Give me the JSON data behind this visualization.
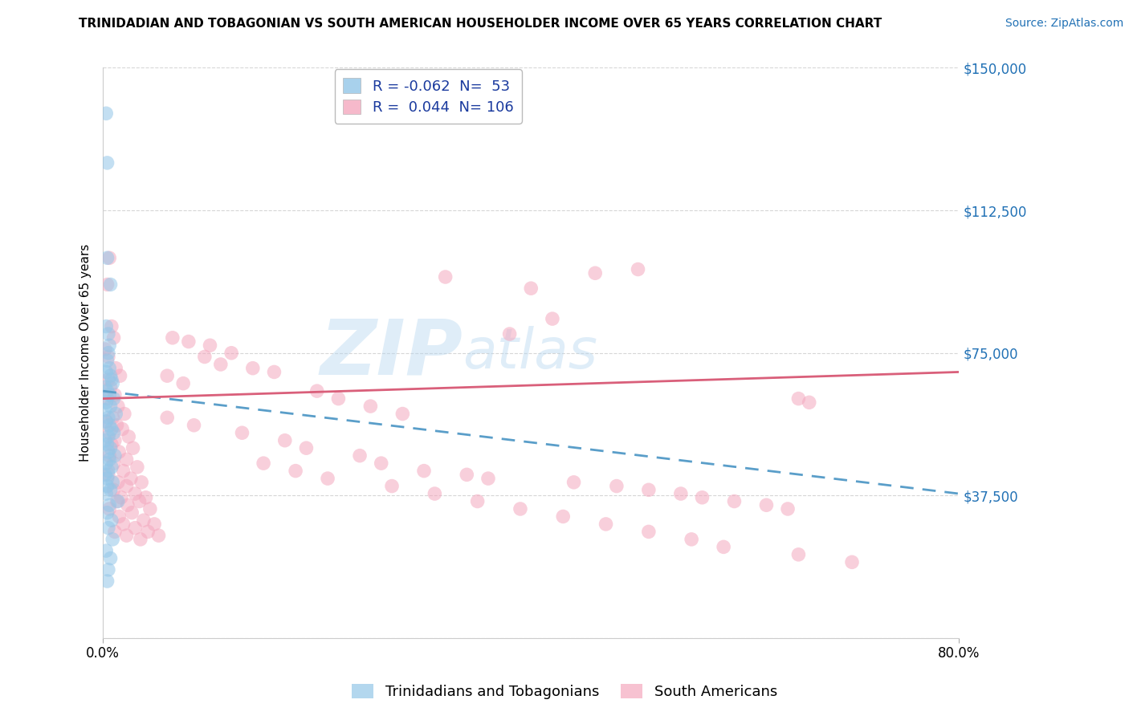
{
  "title": "TRINIDADIAN AND TOBAGONIAN VS SOUTH AMERICAN HOUSEHOLDER INCOME OVER 65 YEARS CORRELATION CHART",
  "source": "Source: ZipAtlas.com",
  "ylabel": "Householder Income Over 65 years",
  "x_min": 0.0,
  "x_max": 0.8,
  "y_min": 0,
  "y_max": 150000,
  "y_ticks": [
    0,
    37500,
    75000,
    112500,
    150000
  ],
  "y_tick_labels": [
    "",
    "$37,500",
    "$75,000",
    "$112,500",
    "$150,000"
  ],
  "x_ticks": [
    0.0,
    0.8
  ],
  "x_tick_labels": [
    "0.0%",
    "80.0%"
  ],
  "blue_R": -0.062,
  "blue_N": 53,
  "pink_R": 0.044,
  "pink_N": 106,
  "blue_color": "#93c6e8",
  "pink_color": "#f4a8be",
  "blue_line_color": "#5a9ec9",
  "pink_line_color": "#d95f7a",
  "legend_blue_label": "Trinidadians and Tobagonians",
  "legend_pink_label": "South Americans",
  "watermark_zip": "ZIP",
  "watermark_atlas": "atlas",
  "title_fontsize": 11,
  "axis_label_fontsize": 11,
  "tick_fontsize": 12,
  "legend_fontsize": 12,
  "source_fontsize": 10,
  "blue_line_x": [
    0.0,
    0.8
  ],
  "blue_line_y": [
    65000,
    38000
  ],
  "pink_line_x": [
    0.0,
    0.8
  ],
  "pink_line_y": [
    63000,
    70000
  ],
  "blue_scatter": [
    [
      0.003,
      138000
    ],
    [
      0.004,
      125000
    ],
    [
      0.004,
      100000
    ],
    [
      0.007,
      93000
    ],
    [
      0.003,
      82000
    ],
    [
      0.005,
      80000
    ],
    [
      0.006,
      77000
    ],
    [
      0.005,
      75000
    ],
    [
      0.004,
      73000
    ],
    [
      0.006,
      71000
    ],
    [
      0.003,
      70000
    ],
    [
      0.007,
      69000
    ],
    [
      0.008,
      68000
    ],
    [
      0.009,
      67000
    ],
    [
      0.002,
      66000
    ],
    [
      0.004,
      65000
    ],
    [
      0.006,
      64000
    ],
    [
      0.01,
      63000
    ],
    [
      0.003,
      62000
    ],
    [
      0.007,
      61000
    ],
    [
      0.002,
      60000
    ],
    [
      0.012,
      59000
    ],
    [
      0.005,
      58000
    ],
    [
      0.003,
      57000
    ],
    [
      0.006,
      56000
    ],
    [
      0.008,
      55000
    ],
    [
      0.01,
      54000
    ],
    [
      0.005,
      53000
    ],
    [
      0.002,
      52000
    ],
    [
      0.004,
      51000
    ],
    [
      0.007,
      50000
    ],
    [
      0.005,
      49000
    ],
    [
      0.011,
      48000
    ],
    [
      0.006,
      47000
    ],
    [
      0.003,
      46000
    ],
    [
      0.008,
      45000
    ],
    [
      0.005,
      44000
    ],
    [
      0.002,
      43000
    ],
    [
      0.004,
      42000
    ],
    [
      0.009,
      41000
    ],
    [
      0.004,
      40000
    ],
    [
      0.007,
      39000
    ],
    [
      0.003,
      38000
    ],
    [
      0.014,
      36000
    ],
    [
      0.006,
      35000
    ],
    [
      0.004,
      33000
    ],
    [
      0.008,
      31000
    ],
    [
      0.005,
      29000
    ],
    [
      0.009,
      26000
    ],
    [
      0.003,
      23000
    ],
    [
      0.007,
      21000
    ],
    [
      0.005,
      18000
    ],
    [
      0.004,
      15000
    ]
  ],
  "pink_scatter": [
    [
      0.004,
      93000
    ],
    [
      0.006,
      100000
    ],
    [
      0.008,
      82000
    ],
    [
      0.01,
      79000
    ],
    [
      0.002,
      76000
    ],
    [
      0.005,
      74000
    ],
    [
      0.012,
      71000
    ],
    [
      0.016,
      69000
    ],
    [
      0.005,
      68000
    ],
    [
      0.007,
      66000
    ],
    [
      0.011,
      64000
    ],
    [
      0.004,
      63000
    ],
    [
      0.014,
      61000
    ],
    [
      0.02,
      59000
    ],
    [
      0.009,
      58000
    ],
    [
      0.003,
      57000
    ],
    [
      0.013,
      56000
    ],
    [
      0.018,
      55000
    ],
    [
      0.006,
      54000
    ],
    [
      0.024,
      53000
    ],
    [
      0.011,
      52000
    ],
    [
      0.008,
      51000
    ],
    [
      0.028,
      50000
    ],
    [
      0.015,
      49000
    ],
    [
      0.006,
      48000
    ],
    [
      0.022,
      47000
    ],
    [
      0.01,
      46000
    ],
    [
      0.032,
      45000
    ],
    [
      0.019,
      44000
    ],
    [
      0.005,
      43000
    ],
    [
      0.026,
      42000
    ],
    [
      0.014,
      41000
    ],
    [
      0.036,
      41000
    ],
    [
      0.022,
      40000
    ],
    [
      0.01,
      39000
    ],
    [
      0.03,
      38000
    ],
    [
      0.017,
      37000
    ],
    [
      0.04,
      37000
    ],
    [
      0.013,
      36000
    ],
    [
      0.034,
      36000
    ],
    [
      0.023,
      35000
    ],
    [
      0.006,
      34000
    ],
    [
      0.044,
      34000
    ],
    [
      0.027,
      33000
    ],
    [
      0.015,
      32000
    ],
    [
      0.038,
      31000
    ],
    [
      0.019,
      30000
    ],
    [
      0.048,
      30000
    ],
    [
      0.03,
      29000
    ],
    [
      0.011,
      28000
    ],
    [
      0.042,
      28000
    ],
    [
      0.022,
      27000
    ],
    [
      0.052,
      27000
    ],
    [
      0.035,
      26000
    ],
    [
      0.32,
      95000
    ],
    [
      0.4,
      92000
    ],
    [
      0.46,
      96000
    ],
    [
      0.5,
      97000
    ],
    [
      0.42,
      84000
    ],
    [
      0.38,
      80000
    ],
    [
      0.065,
      79000
    ],
    [
      0.08,
      78000
    ],
    [
      0.1,
      77000
    ],
    [
      0.12,
      75000
    ],
    [
      0.095,
      74000
    ],
    [
      0.11,
      72000
    ],
    [
      0.14,
      71000
    ],
    [
      0.16,
      70000
    ],
    [
      0.06,
      69000
    ],
    [
      0.075,
      67000
    ],
    [
      0.2,
      65000
    ],
    [
      0.22,
      63000
    ],
    [
      0.25,
      61000
    ],
    [
      0.28,
      59000
    ],
    [
      0.06,
      58000
    ],
    [
      0.085,
      56000
    ],
    [
      0.13,
      54000
    ],
    [
      0.17,
      52000
    ],
    [
      0.19,
      50000
    ],
    [
      0.24,
      48000
    ],
    [
      0.26,
      46000
    ],
    [
      0.3,
      44000
    ],
    [
      0.34,
      43000
    ],
    [
      0.36,
      42000
    ],
    [
      0.44,
      41000
    ],
    [
      0.48,
      40000
    ],
    [
      0.51,
      39000
    ],
    [
      0.54,
      38000
    ],
    [
      0.56,
      37000
    ],
    [
      0.59,
      36000
    ],
    [
      0.62,
      35000
    ],
    [
      0.64,
      34000
    ],
    [
      0.15,
      46000
    ],
    [
      0.18,
      44000
    ],
    [
      0.21,
      42000
    ],
    [
      0.27,
      40000
    ],
    [
      0.31,
      38000
    ],
    [
      0.35,
      36000
    ],
    [
      0.39,
      34000
    ],
    [
      0.43,
      32000
    ],
    [
      0.47,
      30000
    ],
    [
      0.51,
      28000
    ],
    [
      0.55,
      26000
    ],
    [
      0.58,
      24000
    ],
    [
      0.65,
      63000
    ],
    [
      0.66,
      62000
    ],
    [
      0.65,
      22000
    ],
    [
      0.7,
      20000
    ]
  ]
}
